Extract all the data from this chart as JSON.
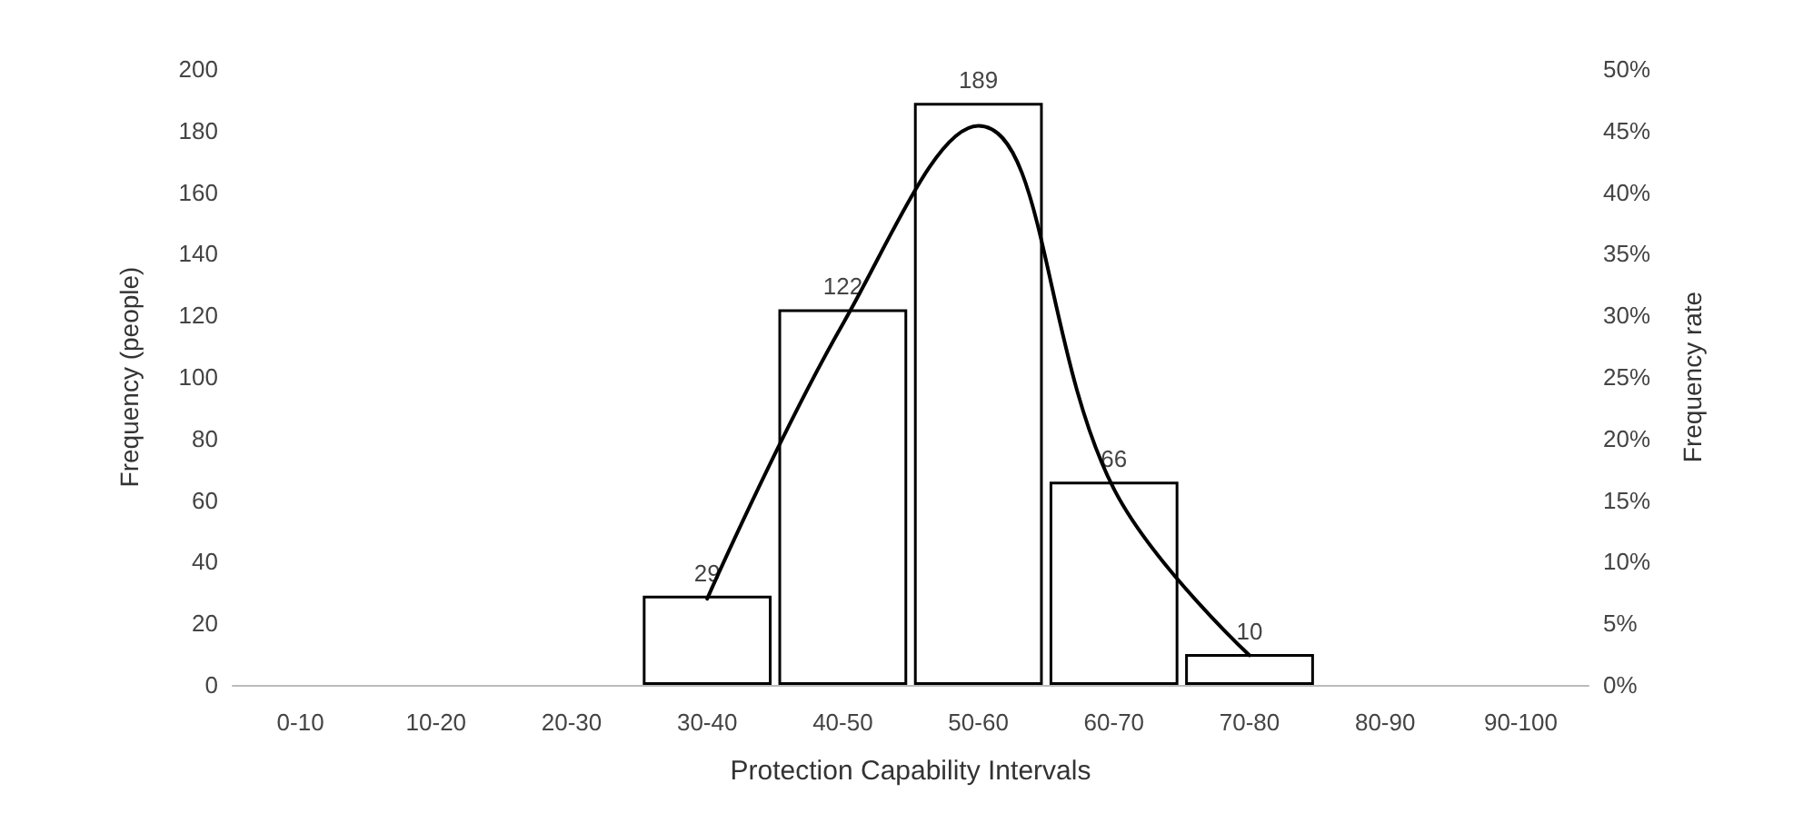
{
  "chart_data": {
    "type": "bar",
    "xlabel": "Protection Capability Intervals",
    "ylabel": "Frequency (people)",
    "y2label": "Frequency rate",
    "categories": [
      "0-10",
      "10-20",
      "20-30",
      "30-40",
      "40-50",
      "50-60",
      "60-70",
      "70-80",
      "80-90",
      "90-100"
    ],
    "series": [
      {
        "color": "#ffffff",
        "values": [
          0,
          0,
          0,
          29,
          122,
          189,
          66,
          10,
          0,
          0
        ],
        "value_labels": [
          null,
          null,
          null,
          "29",
          "122",
          "189",
          "66",
          "10",
          null,
          null
        ]
      },
      {
        "type": "line",
        "axis": "y2",
        "color": "#000000",
        "values": [
          null,
          null,
          null,
          7,
          29.3,
          45.4,
          15.9,
          2.4,
          null,
          null
        ]
      }
    ],
    "ylim": [
      0,
      200
    ],
    "yticks": [
      0,
      20,
      40,
      60,
      80,
      100,
      120,
      140,
      160,
      180,
      200
    ],
    "y2lim": [
      0,
      50
    ],
    "y2ticks": [
      {
        "value": 0,
        "label": "0%"
      },
      {
        "value": 5,
        "label": "5%"
      },
      {
        "value": 10,
        "label": "10%"
      },
      {
        "value": 15,
        "label": "15%"
      },
      {
        "value": 20,
        "label": "20%"
      },
      {
        "value": 25,
        "label": "25%"
      },
      {
        "value": 30,
        "label": "30%"
      },
      {
        "value": 35,
        "label": "35%"
      },
      {
        "value": 40,
        "label": "40%"
      },
      {
        "value": 45,
        "label": "45%"
      },
      {
        "value": 50,
        "label": "50%"
      }
    ],
    "grid": false,
    "marker": "none",
    "line_style": "solid"
  }
}
